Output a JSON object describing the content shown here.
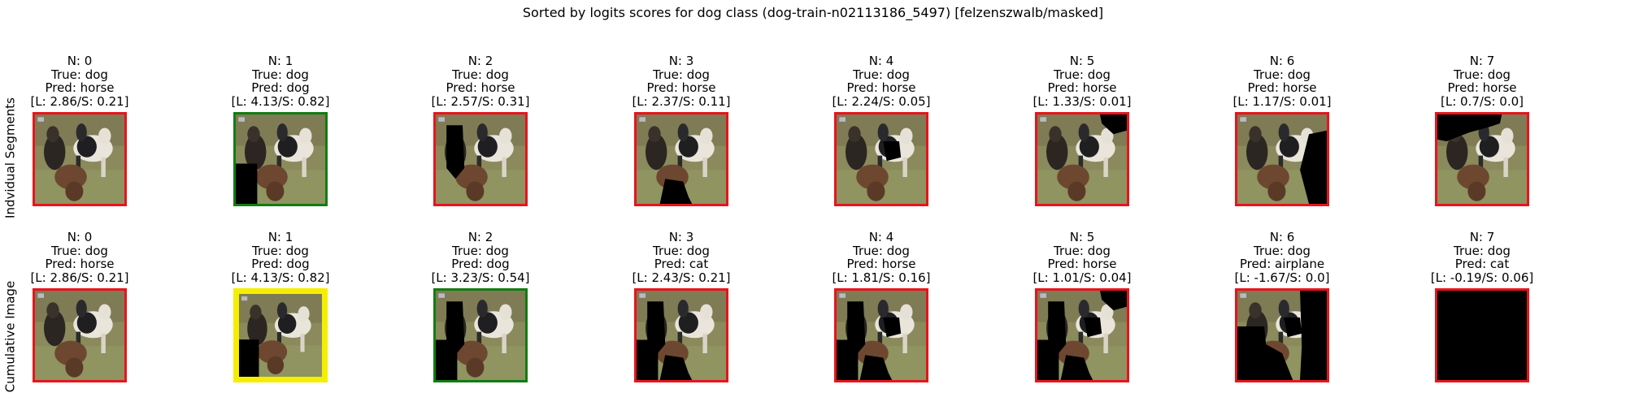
{
  "title": "Sorted by logits scores for dog class (dog-train-n02113186_5497) [felzenszwalb/masked]",
  "row_labels": [
    "Indvidual Segments",
    "Cumulative Image"
  ],
  "colors": {
    "red": "#e8141c",
    "green": "#127c12",
    "yellow": "#f5ee00"
  },
  "rows": [
    {
      "cells": [
        {
          "n": "N: 0",
          "true": "True: dog",
          "pred": "Pred: horse",
          "scores": "[L: 2.86/S: 0.21]",
          "border": "red",
          "thick": false,
          "mask": "none"
        },
        {
          "n": "N: 1",
          "true": "True: dog",
          "pred": "Pred: dog",
          "scores": "[L: 4.13/S: 0.82]",
          "border": "green",
          "thick": false,
          "mask": "seg1"
        },
        {
          "n": "N: 2",
          "true": "True: dog",
          "pred": "Pred: horse",
          "scores": "[L: 2.57/S: 0.31]",
          "border": "red",
          "thick": false,
          "mask": "seg2"
        },
        {
          "n": "N: 3",
          "true": "True: dog",
          "pred": "Pred: horse",
          "scores": "[L: 2.37/S: 0.11]",
          "border": "red",
          "thick": false,
          "mask": "seg3"
        },
        {
          "n": "N: 4",
          "true": "True: dog",
          "pred": "Pred: horse",
          "scores": "[L: 2.24/S: 0.05]",
          "border": "red",
          "thick": false,
          "mask": "seg4"
        },
        {
          "n": "N: 5",
          "true": "True: dog",
          "pred": "Pred: horse",
          "scores": "[L: 1.33/S: 0.01]",
          "border": "red",
          "thick": false,
          "mask": "seg5"
        },
        {
          "n": "N: 6",
          "true": "True: dog",
          "pred": "Pred: horse",
          "scores": "[L: 1.17/S: 0.01]",
          "border": "red",
          "thick": false,
          "mask": "seg6"
        },
        {
          "n": "N: 7",
          "true": "True: dog",
          "pred": "Pred: horse",
          "scores": "[L: 0.7/S: 0.0]",
          "border": "red",
          "thick": false,
          "mask": "seg7"
        }
      ]
    },
    {
      "cells": [
        {
          "n": "N: 0",
          "true": "True: dog",
          "pred": "Pred: horse",
          "scores": "[L: 2.86/S: 0.21]",
          "border": "red",
          "thick": false,
          "mask": "c0"
        },
        {
          "n": "N: 1",
          "true": "True: dog",
          "pred": "Pred: dog",
          "scores": "[L: 4.13/S: 0.82]",
          "border": "yellow",
          "thick": true,
          "mask": "c1"
        },
        {
          "n": "N: 2",
          "true": "True: dog",
          "pred": "Pred: dog",
          "scores": "[L: 3.23/S: 0.54]",
          "border": "green",
          "thick": false,
          "mask": "c2"
        },
        {
          "n": "N: 3",
          "true": "True: dog",
          "pred": "Pred: cat",
          "scores": "[L: 2.43/S: 0.21]",
          "border": "red",
          "thick": false,
          "mask": "c3"
        },
        {
          "n": "N: 4",
          "true": "True: dog",
          "pred": "Pred: horse",
          "scores": "[L: 1.81/S: 0.16]",
          "border": "red",
          "thick": false,
          "mask": "c4"
        },
        {
          "n": "N: 5",
          "true": "True: dog",
          "pred": "Pred: horse",
          "scores": "[L: 1.01/S: 0.04]",
          "border": "red",
          "thick": false,
          "mask": "c5"
        },
        {
          "n": "N: 6",
          "true": "True: dog",
          "pred": "Pred: airplane",
          "scores": "[L: -1.67/S: 0.0]",
          "border": "red",
          "thick": false,
          "mask": "c6"
        },
        {
          "n": "N: 7",
          "true": "True: dog",
          "pred": "Pred: cat",
          "scores": "[L: -0.19/S: 0.06]",
          "border": "red",
          "thick": false,
          "mask": "c7"
        }
      ]
    }
  ]
}
